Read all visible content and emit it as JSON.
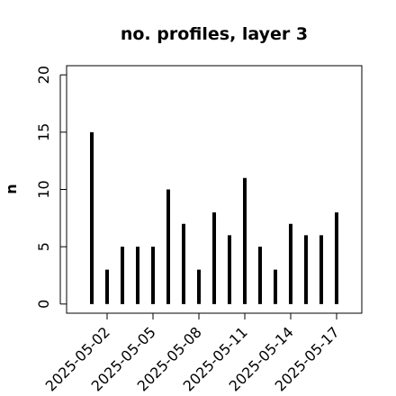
{
  "chart_data": {
    "type": "spike",
    "title": "no. profiles, layer 3",
    "y_label": "n",
    "x": [
      "2025-05-01",
      "2025-05-02",
      "2025-05-03",
      "2025-05-04",
      "2025-05-05",
      "2025-05-06",
      "2025-05-07",
      "2025-05-08",
      "2025-05-09",
      "2025-05-10",
      "2025-05-11",
      "2025-05-12",
      "2025-05-13",
      "2025-05-14",
      "2025-05-15",
      "2025-05-16",
      "2025-05-17"
    ],
    "values": [
      15,
      3,
      5,
      5,
      5,
      10,
      7,
      3,
      8,
      6,
      11,
      5,
      3,
      7,
      6,
      6,
      8
    ],
    "color": "#000000",
    "ylim": [
      -0.8,
      20.8
    ],
    "yticks": [
      0,
      5,
      10,
      15,
      20
    ],
    "xticks": [
      "2025-05-02",
      "2025-05-05",
      "2025-05-08",
      "2025-05-11",
      "2025-05-14",
      "2025-05-17"
    ],
    "xtick_label_colors": [
      "#000000",
      "#000000",
      "#228b22",
      "#000000",
      "#000000",
      "#000000"
    ]
  }
}
